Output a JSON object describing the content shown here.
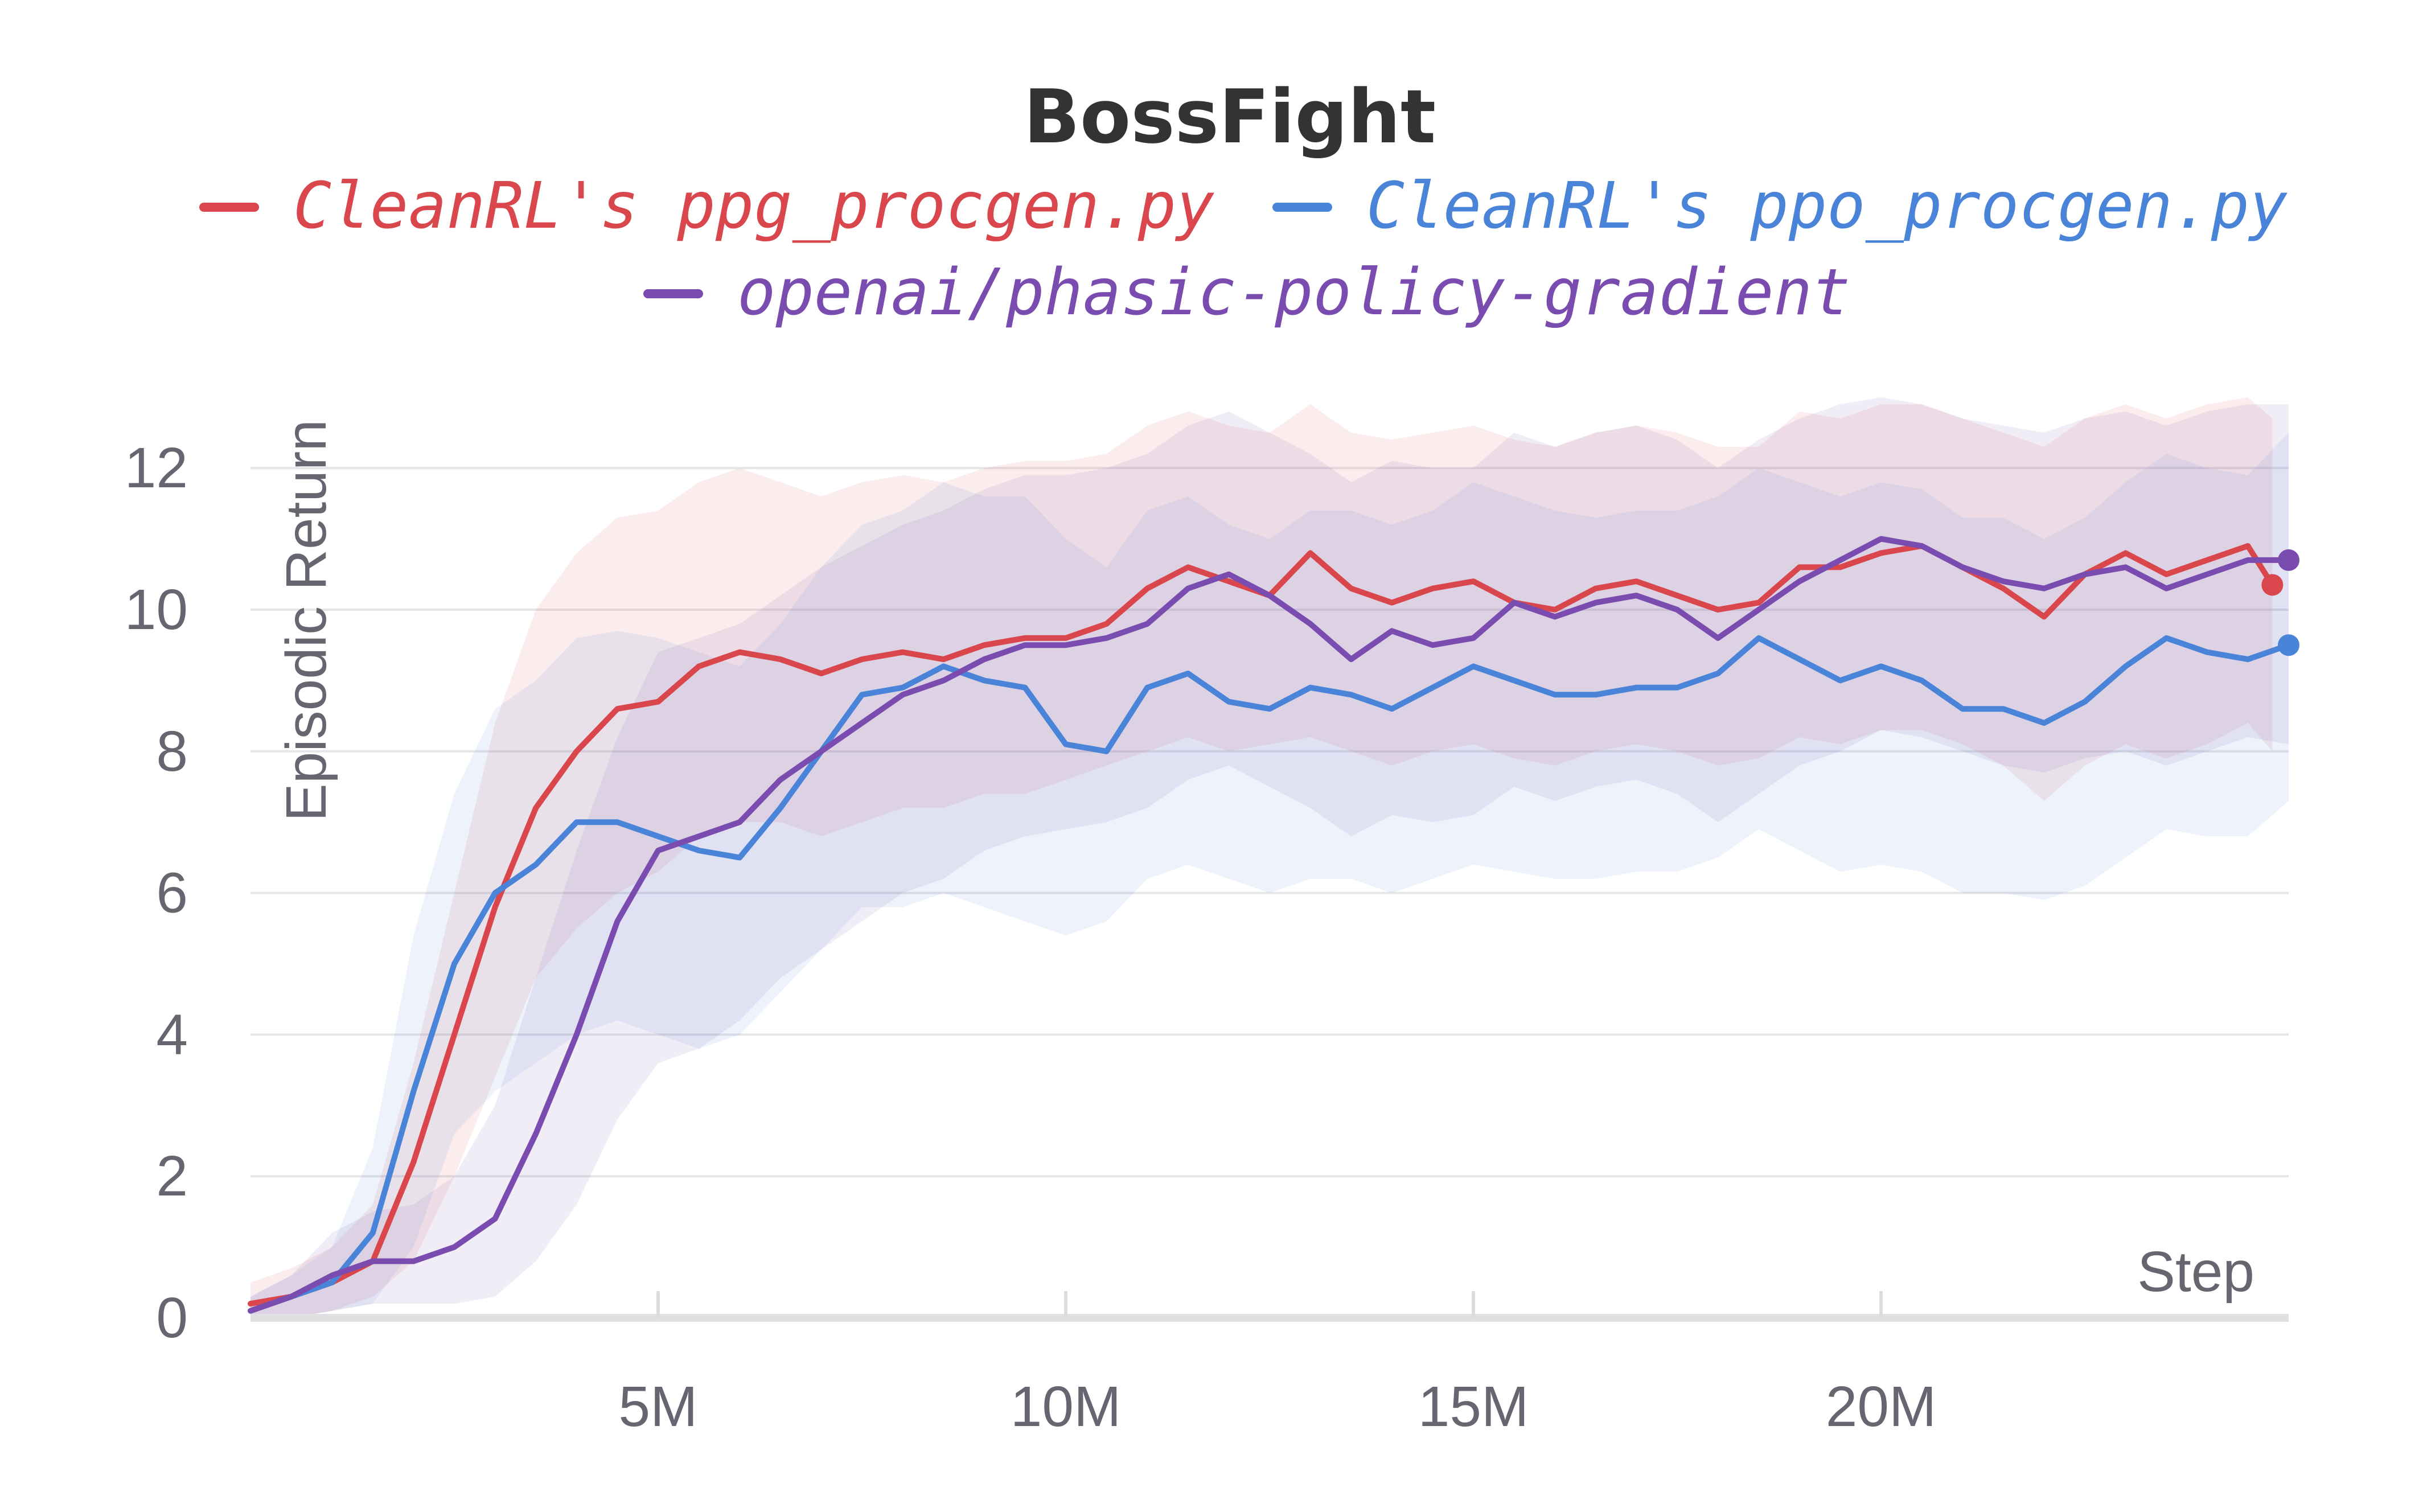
{
  "chart_data": {
    "type": "line",
    "title": "BossFight",
    "xlabel": "Step",
    "ylabel": "Episodic Return",
    "xlim": [
      0,
      25000000
    ],
    "ylim": [
      0,
      12.5
    ],
    "yticks": [
      0,
      2,
      4,
      6,
      8,
      10,
      12
    ],
    "xticks": [
      5000000,
      10000000,
      15000000,
      20000000
    ],
    "xtick_labels": [
      "5M",
      "10M",
      "15M",
      "20M"
    ],
    "grid": true,
    "legend_position": "top",
    "series": [
      {
        "name": "CleanRL's ppg_procgen.py",
        "color": "#d9464b",
        "x": [
          0,
          500000,
          1000000,
          1500000,
          2000000,
          2500000,
          3000000,
          3500000,
          4000000,
          4500000,
          5000000,
          5500000,
          6000000,
          6500000,
          7000000,
          7500000,
          8000000,
          8500000,
          9000000,
          9500000,
          10000000,
          10500000,
          11000000,
          11500000,
          12000000,
          12500000,
          13000000,
          13500000,
          14000000,
          14500000,
          15000000,
          15500000,
          16000000,
          16500000,
          17000000,
          17500000,
          18000000,
          18500000,
          19000000,
          19500000,
          20000000,
          20500000,
          21000000,
          21500000,
          22000000,
          22500000,
          23000000,
          23500000,
          24000000,
          24500000,
          24800000
        ],
        "y": [
          0.2,
          0.3,
          0.5,
          0.8,
          2.2,
          4.0,
          5.8,
          7.2,
          8.0,
          8.6,
          8.7,
          9.2,
          9.4,
          9.3,
          9.1,
          9.3,
          9.4,
          9.3,
          9.5,
          9.6,
          9.6,
          9.8,
          10.3,
          10.6,
          10.4,
          10.2,
          10.8,
          10.3,
          10.1,
          10.3,
          10.4,
          10.1,
          10.0,
          10.3,
          10.4,
          10.2,
          10.0,
          10.1,
          10.6,
          10.6,
          10.8,
          10.9,
          10.6,
          10.3,
          9.9,
          10.5,
          10.8,
          10.5,
          10.7,
          10.9,
          10.35
        ],
        "band_low": [
          0.0,
          0.0,
          0.1,
          0.3,
          0.8,
          2.0,
          3.4,
          4.8,
          5.5,
          6.0,
          6.3,
          6.8,
          7.0,
          7.0,
          6.8,
          7.0,
          7.2,
          7.2,
          7.4,
          7.4,
          7.6,
          7.8,
          8.0,
          8.2,
          8.0,
          8.1,
          8.2,
          8.0,
          7.8,
          8.0,
          8.1,
          7.9,
          7.8,
          8.0,
          8.1,
          8.0,
          7.8,
          7.9,
          8.2,
          8.1,
          8.3,
          8.3,
          8.1,
          7.8,
          7.3,
          7.8,
          8.1,
          7.9,
          8.1,
          8.4,
          8.0
        ],
        "band_high": [
          0.5,
          0.7,
          1.0,
          1.6,
          3.6,
          6.0,
          8.4,
          10.0,
          10.8,
          11.3,
          11.4,
          11.8,
          12.0,
          11.8,
          11.6,
          11.8,
          11.9,
          11.8,
          12.0,
          12.1,
          12.1,
          12.2,
          12.6,
          12.8,
          12.6,
          12.5,
          12.9,
          12.5,
          12.4,
          12.5,
          12.6,
          12.4,
          12.3,
          12.5,
          12.6,
          12.5,
          12.3,
          12.3,
          12.8,
          12.7,
          12.9,
          12.9,
          12.7,
          12.5,
          12.3,
          12.7,
          12.9,
          12.7,
          12.9,
          13.0,
          12.7
        ]
      },
      {
        "name": "CleanRL's ppo_procgen.py",
        "color": "#4a84d8",
        "x": [
          0,
          500000,
          1000000,
          1500000,
          2000000,
          2500000,
          3000000,
          3500000,
          4000000,
          4500000,
          5000000,
          5500000,
          6000000,
          6500000,
          7000000,
          7500000,
          8000000,
          8500000,
          9000000,
          9500000,
          10000000,
          10500000,
          11000000,
          11500000,
          12000000,
          12500000,
          13000000,
          13500000,
          14000000,
          14500000,
          15000000,
          15500000,
          16000000,
          16500000,
          17000000,
          17500000,
          18000000,
          18500000,
          19000000,
          19500000,
          20000000,
          20500000,
          21000000,
          21500000,
          22000000,
          22500000,
          23000000,
          23500000,
          24000000,
          24500000,
          25000000
        ],
        "y": [
          0.1,
          0.3,
          0.5,
          1.2,
          3.2,
          5.0,
          6.0,
          6.4,
          7.0,
          7.0,
          6.8,
          6.6,
          6.5,
          7.2,
          8.0,
          8.8,
          8.9,
          9.2,
          9.0,
          8.9,
          8.1,
          8.0,
          8.9,
          9.1,
          8.7,
          8.6,
          8.9,
          8.8,
          8.6,
          8.9,
          9.2,
          9.0,
          8.8,
          8.8,
          8.9,
          8.9,
          9.1,
          9.6,
          9.3,
          9.0,
          9.2,
          9.0,
          8.6,
          8.6,
          8.4,
          8.7,
          9.2,
          9.6,
          9.4,
          9.3,
          9.5
        ],
        "band_low": [
          0.0,
          0.0,
          0.1,
          0.2,
          1.0,
          2.6,
          3.2,
          3.6,
          4.0,
          4.2,
          4.0,
          3.8,
          4.0,
          4.6,
          5.2,
          5.8,
          5.8,
          6.0,
          5.8,
          5.6,
          5.4,
          5.6,
          6.2,
          6.4,
          6.2,
          6.0,
          6.2,
          6.2,
          6.0,
          6.2,
          6.4,
          6.3,
          6.2,
          6.2,
          6.3,
          6.3,
          6.5,
          6.9,
          6.6,
          6.3,
          6.4,
          6.3,
          6.0,
          6.0,
          5.9,
          6.1,
          6.5,
          6.9,
          6.8,
          6.8,
          7.3
        ],
        "band_high": [
          0.3,
          0.6,
          1.0,
          2.4,
          5.4,
          7.4,
          8.6,
          9.0,
          9.6,
          9.7,
          9.6,
          9.4,
          9.2,
          9.8,
          10.6,
          11.2,
          11.4,
          11.8,
          11.6,
          11.6,
          11.0,
          10.6,
          11.4,
          11.6,
          11.2,
          11.0,
          11.4,
          11.4,
          11.2,
          11.4,
          11.8,
          11.6,
          11.4,
          11.3,
          11.4,
          11.4,
          11.6,
          12.0,
          11.8,
          11.6,
          11.8,
          11.7,
          11.3,
          11.3,
          11.0,
          11.3,
          11.8,
          12.2,
          12.0,
          11.9,
          12.5
        ]
      },
      {
        "name": "openai/phasic-policy-gradient",
        "color": "#7a4cb0",
        "x": [
          0,
          500000,
          1000000,
          1500000,
          2000000,
          2500000,
          3000000,
          3500000,
          4000000,
          4500000,
          5000000,
          5500000,
          6000000,
          6500000,
          7000000,
          7500000,
          8000000,
          8500000,
          9000000,
          9500000,
          10000000,
          10500000,
          11000000,
          11500000,
          12000000,
          12500000,
          13000000,
          13500000,
          14000000,
          14500000,
          15000000,
          15500000,
          16000000,
          16500000,
          17000000,
          17500000,
          18000000,
          18500000,
          19000000,
          19500000,
          20000000,
          20500000,
          21000000,
          21500000,
          22000000,
          22500000,
          23000000,
          23500000,
          24000000,
          24500000,
          25000000
        ],
        "y": [
          0.1,
          0.3,
          0.6,
          0.8,
          0.8,
          1.0,
          1.4,
          2.6,
          4.0,
          5.6,
          6.6,
          6.8,
          7.0,
          7.6,
          8.0,
          8.4,
          8.8,
          9.0,
          9.3,
          9.5,
          9.5,
          9.6,
          9.8,
          10.3,
          10.5,
          10.2,
          9.8,
          9.3,
          9.7,
          9.5,
          9.6,
          10.1,
          9.9,
          10.1,
          10.2,
          10.0,
          9.6,
          10.0,
          10.4,
          10.7,
          11.0,
          10.9,
          10.6,
          10.4,
          10.3,
          10.5,
          10.6,
          10.3,
          10.5,
          10.7,
          10.7
        ],
        "band_low": [
          0.0,
          0.0,
          0.1,
          0.2,
          0.2,
          0.2,
          0.3,
          0.8,
          1.6,
          2.8,
          3.6,
          3.8,
          4.2,
          4.8,
          5.2,
          5.6,
          6.0,
          6.2,
          6.6,
          6.8,
          6.9,
          7.0,
          7.2,
          7.6,
          7.8,
          7.5,
          7.2,
          6.8,
          7.1,
          7.0,
          7.1,
          7.5,
          7.3,
          7.5,
          7.6,
          7.4,
          7.0,
          7.4,
          7.8,
          8.0,
          8.3,
          8.2,
          8.0,
          7.8,
          7.7,
          7.9,
          8.0,
          7.8,
          8.0,
          8.2,
          8.1
        ],
        "band_high": [
          0.3,
          0.6,
          1.2,
          1.5,
          1.6,
          2.0,
          3.0,
          4.8,
          6.6,
          8.2,
          9.4,
          9.6,
          9.8,
          10.2,
          10.6,
          10.9,
          11.2,
          11.4,
          11.7,
          11.9,
          11.9,
          12.0,
          12.2,
          12.6,
          12.8,
          12.5,
          12.2,
          11.8,
          12.1,
          12.0,
          12.0,
          12.5,
          12.3,
          12.5,
          12.6,
          12.4,
          12.0,
          12.4,
          12.7,
          12.9,
          13.0,
          12.9,
          12.7,
          12.6,
          12.5,
          12.7,
          12.8,
          12.6,
          12.8,
          12.9,
          12.9
        ]
      }
    ]
  }
}
